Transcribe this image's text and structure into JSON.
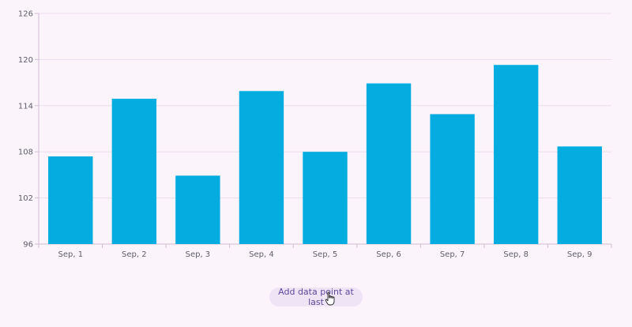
{
  "chart_data": {
    "type": "bar",
    "categories": [
      "Sep, 1",
      "Sep, 2",
      "Sep, 3",
      "Sep, 4",
      "Sep, 5",
      "Sep, 6",
      "Sep, 7",
      "Sep, 8",
      "Sep, 9"
    ],
    "values": [
      107.4,
      114.9,
      104.9,
      115.9,
      108.0,
      116.9,
      112.9,
      119.3,
      108.7
    ],
    "yticks": [
      96,
      102,
      108,
      114,
      120,
      126
    ],
    "ylim": [
      96,
      126
    ],
    "grid": true,
    "bar_color": "#04acdf"
  },
  "button": {
    "label": "Add data point at last"
  },
  "icons": {
    "cursor": "hand-pointer-icon"
  }
}
